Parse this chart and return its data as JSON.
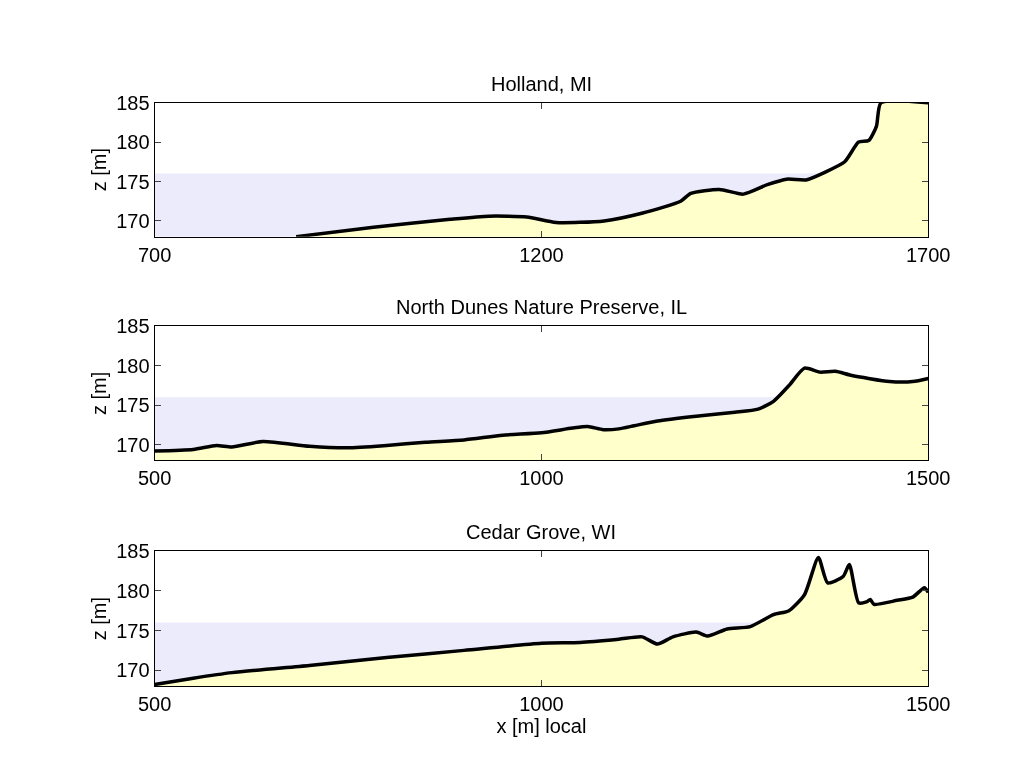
{
  "chart_data": [
    {
      "type": "area",
      "title": "Holland, MI",
      "ylabel": "z [m]",
      "xlim": [
        700,
        1700
      ],
      "ylim": [
        168,
        185
      ],
      "xticks": [
        700,
        1200,
        1700
      ],
      "yticks": [
        170,
        175,
        180,
        185
      ],
      "grid": false,
      "legend": false,
      "bands": [
        {
          "axis": "y",
          "from": 168,
          "to": 176,
          "color": "#ebebfb"
        }
      ],
      "series": [
        {
          "color": "#ffffcc",
          "x": [
            883,
            983,
            1082,
            1132,
            1181,
            1219,
            1281,
            1331,
            1380,
            1393,
            1430,
            1461,
            1492,
            1517,
            1542,
            1567,
            1592,
            1610,
            1623,
            1633,
            1639,
            1700
          ],
          "values": [
            168,
            169.2,
            170.2,
            170.6,
            170.5,
            169.8,
            170,
            171,
            172.5,
            173.5,
            174,
            173.4,
            174.6,
            175.3,
            175.2,
            176.2,
            177.5,
            180,
            180.2,
            182,
            185,
            185
          ]
        }
      ]
    },
    {
      "type": "area",
      "title": "North Dunes Nature Preserve, IL",
      "ylabel": "z [m]",
      "xlim": [
        500,
        1500
      ],
      "ylim": [
        168,
        185
      ],
      "xticks": [
        500,
        1000,
        1500
      ],
      "yticks": [
        170,
        175,
        180,
        185
      ],
      "grid": false,
      "legend": false,
      "bands": [
        {
          "axis": "y",
          "from": 168,
          "to": 176,
          "color": "#ebebfb"
        }
      ],
      "series": [
        {
          "color": "#ffffcc",
          "x": [
            500,
            550,
            580,
            600,
            640,
            700,
            750,
            800,
            850,
            900,
            950,
            1000,
            1040,
            1060,
            1080,
            1100,
            1120,
            1150,
            1200,
            1250,
            1280,
            1300,
            1320,
            1340,
            1360,
            1380,
            1400,
            1450,
            1480,
            1500
          ],
          "values": [
            169.2,
            169.4,
            169.9,
            169.7,
            170.4,
            169.8,
            169.6,
            169.9,
            170.3,
            170.6,
            171.2,
            171.5,
            172.1,
            172.3,
            171.9,
            172,
            172.4,
            173,
            173.6,
            174.1,
            174.5,
            175.5,
            177.5,
            179.7,
            179.2,
            179.3,
            178.8,
            178,
            178,
            178.4
          ]
        }
      ]
    },
    {
      "type": "area",
      "title": "Cedar Grove, WI",
      "xlabel": "x [m] local",
      "ylabel": "z [m]",
      "xlim": [
        500,
        1500
      ],
      "ylim": [
        168,
        185
      ],
      "xticks": [
        500,
        1000,
        1500
      ],
      "yticks": [
        170,
        175,
        180,
        185
      ],
      "grid": false,
      "legend": false,
      "bands": [
        {
          "axis": "y",
          "from": 168,
          "to": 176,
          "color": "#ebebfb"
        }
      ],
      "series": [
        {
          "color": "#ffffcc",
          "x": [
            500,
            550,
            600,
            700,
            800,
            900,
            1000,
            1050,
            1100,
            1130,
            1150,
            1170,
            1200,
            1215,
            1240,
            1270,
            1300,
            1320,
            1340,
            1358,
            1370,
            1390,
            1398,
            1410,
            1420,
            1425,
            1430,
            1460,
            1480,
            1495,
            1500
          ],
          "values": [
            168.2,
            169,
            169.7,
            170.6,
            171.6,
            172.5,
            173.4,
            173.5,
            173.9,
            174.2,
            173.3,
            174.2,
            174.8,
            174.3,
            175.2,
            175.5,
            177,
            177.5,
            179.5,
            184.2,
            181,
            181.8,
            183.3,
            178.5,
            178.6,
            178.9,
            178.3,
            178.8,
            179.2,
            180.4,
            179.8
          ]
        }
      ]
    }
  ]
}
